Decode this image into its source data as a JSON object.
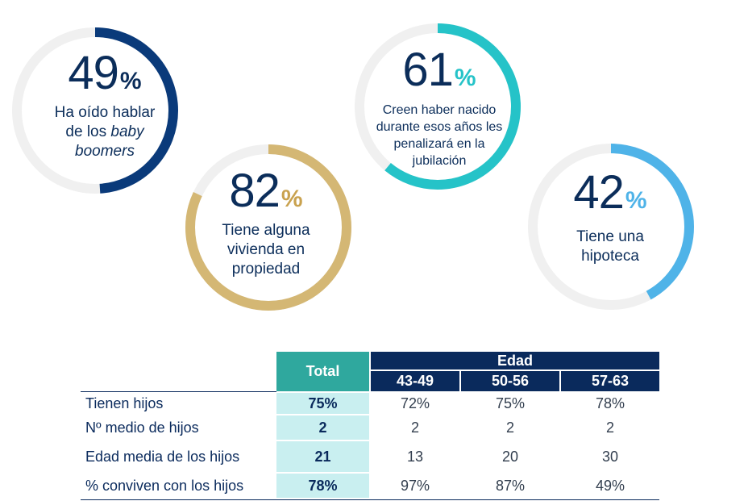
{
  "chart_data": [
    {
      "type": "donut",
      "value": 49,
      "number": "49",
      "unit": "%",
      "label_lines": [
        "Ha oído hablar",
        "de los ",
        "boomers"
      ],
      "label_italic": "baby",
      "color": "#0a3a7a",
      "track_color": "#f0f0f0"
    },
    {
      "type": "donut",
      "value": 82,
      "number": "82",
      "unit": "%",
      "label_lines": [
        "Tiene alguna",
        "vivienda en",
        "propiedad"
      ],
      "color": "#d4b774",
      "track_color": "#f0f0f0"
    },
    {
      "type": "donut",
      "value": 61,
      "number": "61",
      "unit": "%",
      "label_lines": [
        "Creen haber nacido",
        "durante esos años les",
        "penalizará en la",
        "jubilación"
      ],
      "color": "#25c3c8",
      "track_color": "#f0f0f0"
    },
    {
      "type": "donut",
      "value": 42,
      "number": "42",
      "unit": "%",
      "label_lines": [
        "Tiene una",
        "hipoteca"
      ],
      "color": "#4fb3e8",
      "track_color": "#f0f0f0"
    },
    {
      "type": "table",
      "header_total": "Total",
      "header_group": "Edad",
      "age_groups": [
        "43-49",
        "50-56",
        "57-63"
      ],
      "rows": [
        {
          "label": "Tienen hijos",
          "total": "75%",
          "values": [
            "72%",
            "75%",
            "78%"
          ]
        },
        {
          "label": "Nº medio de hijos",
          "total": "2",
          "values": [
            "2",
            "2",
            "2"
          ]
        },
        {
          "label": "Edad media de los hijos",
          "total": "21",
          "values": [
            "13",
            "20",
            "30"
          ]
        },
        {
          "label": "% conviven con los hijos",
          "total": "78%",
          "values": [
            "97%",
            "87%",
            "49%"
          ]
        }
      ]
    }
  ]
}
